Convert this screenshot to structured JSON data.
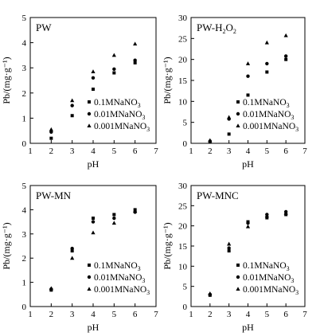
{
  "chart_data": [
    {
      "type": "scatter",
      "title": "PW",
      "xlabel": "pH",
      "ylabel": "Pb/(mg·g⁻¹)",
      "xlim": [
        1,
        7
      ],
      "ylim": [
        0,
        5
      ],
      "xticks": [
        "1",
        "2",
        "3",
        "4",
        "5",
        "6",
        "7"
      ],
      "yticks": [
        "0",
        "1",
        "2",
        "3",
        "4",
        "5"
      ],
      "legend_position": "lower-right",
      "series": [
        {
          "name": "0.1MNaNO3",
          "marker": "square",
          "points": [
            [
              2,
              0.2
            ],
            [
              3,
              1.1
            ],
            [
              4,
              2.15
            ],
            [
              5,
              2.8
            ],
            [
              6,
              3.2
            ]
          ]
        },
        {
          "name": "0.01MNaNO3",
          "marker": "circle",
          "points": [
            [
              2,
              0.45
            ],
            [
              3,
              1.5
            ],
            [
              4,
              2.6
            ],
            [
              5,
              2.95
            ],
            [
              6,
              3.3
            ]
          ]
        },
        {
          "name": "0.001MNaNO3",
          "marker": "triangle",
          "points": [
            [
              2,
              0.55
            ],
            [
              3,
              1.7
            ],
            [
              4,
              2.85
            ],
            [
              5,
              3.5
            ],
            [
              6,
              3.95
            ]
          ]
        }
      ]
    },
    {
      "type": "scatter",
      "title": "PW-H2O2",
      "xlabel": "pH",
      "ylabel": "Pb/(mg·g⁻¹)",
      "xlim": [
        1,
        7
      ],
      "ylim": [
        0,
        30
      ],
      "xticks": [
        "1",
        "2",
        "3",
        "4",
        "5",
        "6",
        "7"
      ],
      "yticks": [
        "0",
        "5",
        "10",
        "15",
        "20",
        "25",
        "30"
      ],
      "legend_position": "lower-right",
      "series": [
        {
          "name": "0.1MNaNO3",
          "marker": "square",
          "points": [
            [
              2,
              0.3
            ],
            [
              3,
              2.2
            ],
            [
              4,
              11.5
            ],
            [
              5,
              17
            ],
            [
              6,
              20
            ]
          ]
        },
        {
          "name": "0.01MNaNO3",
          "marker": "circle",
          "points": [
            [
              2,
              0.5
            ],
            [
              3,
              5.8
            ],
            [
              4,
              16
            ],
            [
              5,
              19
            ],
            [
              6,
              20.8
            ]
          ]
        },
        {
          "name": "0.001MNaNO3",
          "marker": "triangle",
          "points": [
            [
              2,
              0.7
            ],
            [
              3,
              6.2
            ],
            [
              4,
              19
            ],
            [
              5,
              24
            ],
            [
              6,
              25.7
            ]
          ]
        }
      ]
    },
    {
      "type": "scatter",
      "title": "PW-MN",
      "xlabel": "pH",
      "ylabel": "Pb/(mg·g⁻¹)",
      "xlim": [
        1,
        7
      ],
      "ylim": [
        0,
        5
      ],
      "xticks": [
        "1",
        "2",
        "3",
        "4",
        "5",
        "6",
        "7"
      ],
      "yticks": [
        "0",
        "1",
        "2",
        "3",
        "4",
        "5"
      ],
      "legend_position": "lower-right",
      "series": [
        {
          "name": "0.1MNaNO3",
          "marker": "square",
          "points": [
            [
              2,
              0.68
            ],
            [
              3,
              2.3
            ],
            [
              4,
              3.65
            ],
            [
              5,
              3.8
            ],
            [
              6,
              4.0
            ]
          ]
        },
        {
          "name": "0.01MNaNO3",
          "marker": "circle",
          "points": [
            [
              2,
              0.72
            ],
            [
              3,
              2.4
            ],
            [
              4,
              3.5
            ],
            [
              5,
              3.65
            ],
            [
              6,
              3.9
            ]
          ]
        },
        {
          "name": "0.001MNaNO3",
          "marker": "triangle",
          "points": [
            [
              2,
              0.75
            ],
            [
              3,
              2.0
            ],
            [
              4,
              3.05
            ],
            [
              5,
              3.45
            ],
            [
              6,
              3.95
            ]
          ]
        }
      ]
    },
    {
      "type": "scatter",
      "title": "PW-MNC",
      "xlabel": "pH",
      "ylabel": "Pb/(mg·g⁻¹)",
      "xlim": [
        1,
        7
      ],
      "ylim": [
        0,
        30
      ],
      "xticks": [
        "1",
        "2",
        "3",
        "4",
        "5",
        "6",
        "7"
      ],
      "yticks": [
        "0",
        "5",
        "10",
        "15",
        "20",
        "25",
        "30"
      ],
      "legend_position": "lower-right",
      "series": [
        {
          "name": "0.1MNaNO3",
          "marker": "square",
          "points": [
            [
              2,
              2.8
            ],
            [
              3,
              13.8
            ],
            [
              4,
              21
            ],
            [
              5,
              22
            ],
            [
              6,
              22.8
            ]
          ]
        },
        {
          "name": "0.01MNaNO3",
          "marker": "circle",
          "points": [
            [
              2,
              3.0
            ],
            [
              3,
              14.5
            ],
            [
              4,
              20.7
            ],
            [
              5,
              22.8
            ],
            [
              6,
              23.5
            ]
          ]
        },
        {
          "name": "0.001MNaNO3",
          "marker": "triangle",
          "points": [
            [
              2,
              3.2
            ],
            [
              3,
              15.5
            ],
            [
              4,
              19.8
            ],
            [
              5,
              22.5
            ],
            [
              6,
              23.2
            ]
          ]
        }
      ]
    }
  ]
}
